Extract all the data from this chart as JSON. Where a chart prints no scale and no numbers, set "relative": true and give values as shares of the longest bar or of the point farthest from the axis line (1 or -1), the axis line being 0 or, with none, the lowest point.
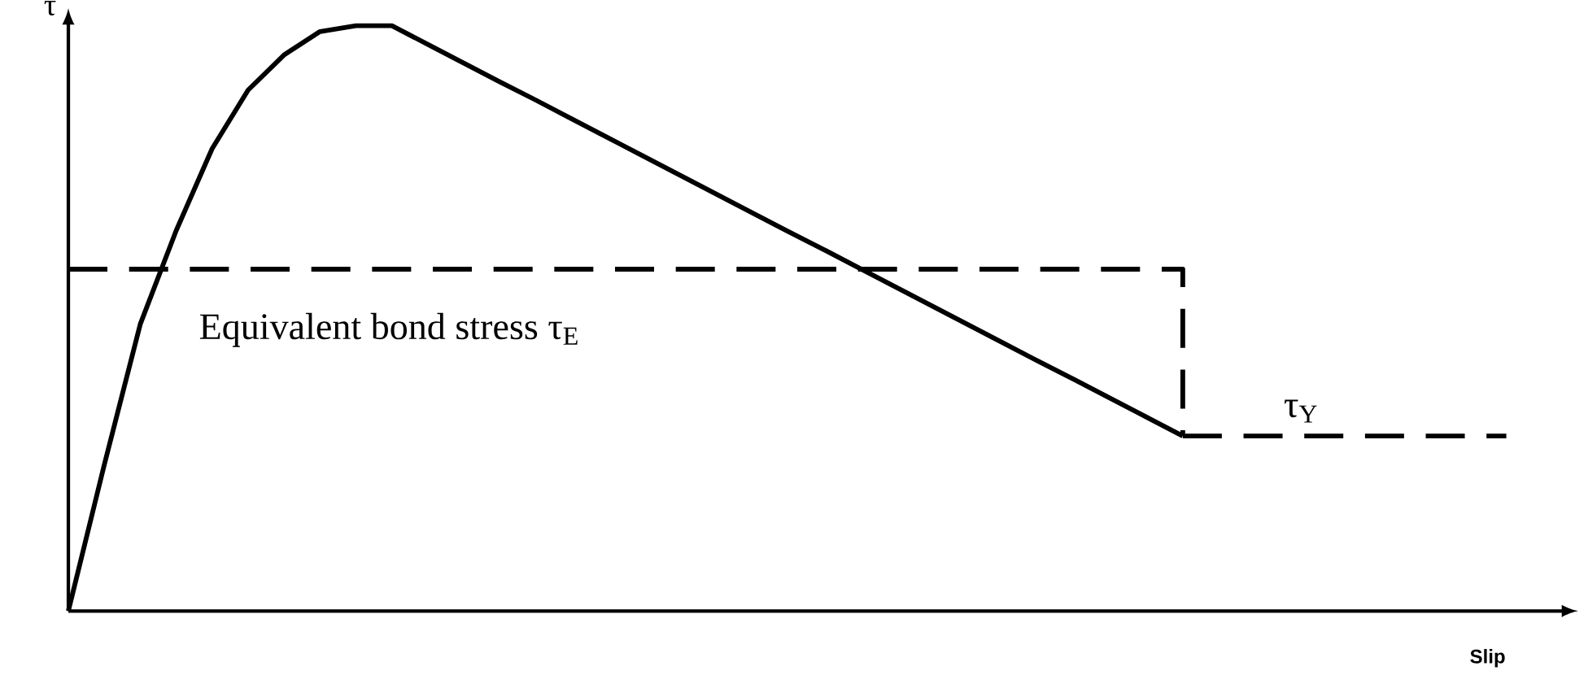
{
  "chart_data": {
    "type": "line",
    "relative": true,
    "xlabel": "Slip",
    "ylabel": "τ",
    "categories": [
      null,
      null,
      null,
      null,
      null,
      null,
      null,
      null,
      null,
      null,
      null,
      null,
      null,
      null,
      null,
      null,
      null,
      null,
      null,
      null,
      null,
      null,
      null,
      null,
      null,
      null,
      null,
      null,
      null,
      null,
      null,
      null,
      null,
      null,
      null,
      null,
      null,
      null,
      null,
      null,
      null
    ],
    "series": [
      {
        "color": "#000000",
        "line_style": "solid",
        "values": [
          0,
          0.25,
          0.49,
          0.65,
          0.79,
          0.89,
          0.95,
          0.99,
          1.0,
          1.0,
          0.968,
          0.936,
          0.904,
          0.873,
          0.841,
          0.809,
          0.777,
          0.745,
          0.713,
          0.681,
          0.649,
          0.618,
          0.586,
          0.554,
          0.522,
          0.49,
          0.458,
          0.426,
          0.395,
          0.363,
          0.331,
          0.299,
          null,
          null,
          null,
          null,
          null,
          null,
          null,
          null,
          null
        ]
      },
      {
        "type": "step",
        "name": "Equivalent bond stress τ$_{E}$",
        "color": "#000000",
        "line_style": "dashed",
        "values": [
          0.584,
          0.584,
          0.584,
          0.584,
          0.584,
          0.584,
          0.584,
          0.584,
          0.584,
          0.584,
          0.584,
          0.584,
          0.584,
          0.584,
          0.584,
          0.584,
          0.584,
          0.584,
          0.584,
          0.584,
          0.584,
          0.584,
          0.584,
          0.584,
          0.584,
          0.584,
          0.584,
          0.584,
          0.584,
          0.584,
          0.584,
          0.299,
          null,
          null,
          null,
          null,
          null,
          null,
          null,
          null,
          null
        ]
      },
      {
        "name": "τ$_{Y}$",
        "color": "#000000",
        "line_style": "dashed",
        "values": [
          null,
          null,
          null,
          null,
          null,
          null,
          null,
          null,
          null,
          null,
          null,
          null,
          null,
          null,
          null,
          null,
          null,
          null,
          null,
          null,
          null,
          null,
          null,
          null,
          null,
          null,
          null,
          null,
          null,
          null,
          null,
          0.299,
          0.299,
          0.299,
          0.299,
          0.299,
          0.299,
          0.299,
          0.299,
          0.299,
          0.299
        ]
      }
    ]
  }
}
